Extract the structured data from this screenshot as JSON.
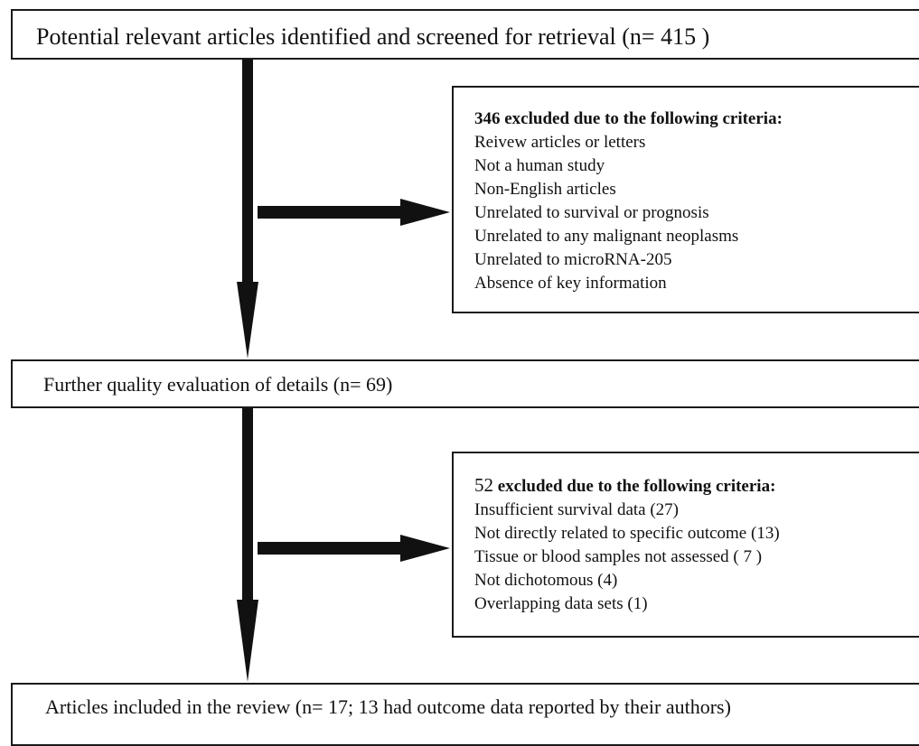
{
  "flow": {
    "identified": {
      "label": "Potential relevant articles identified and screened for retrieval (n= 415 )"
    },
    "exclusion_1": {
      "count": "346",
      "heading_rest": " excluded due to the following criteria:",
      "criteria": [
        "Reivew articles or letters",
        "Not a human study",
        "Non-English articles",
        "Unrelated to survival or prognosis",
        "Unrelated to any malignant neoplasms",
        "Unrelated to microRNA-205",
        "Absence of key information"
      ]
    },
    "evaluation": {
      "label": "Further quality evaluation of details (n= 69)"
    },
    "exclusion_2": {
      "count": "52",
      "heading_rest": " excluded due to the following criteria:",
      "criteria": [
        "Insufficient survival data (27)",
        "Not directly related to specific outcome (13)",
        "Tissue or blood samples not assessed ( 7 )",
        "Not dichotomous (4)",
        "Overlapping data sets (1)"
      ]
    },
    "included": {
      "label": "Articles included in the review (n= 17; 13 had outcome data reported by their authors)"
    }
  },
  "colors": {
    "arrow": "#111111",
    "border": "#1a1a1a",
    "background": "#ffffff"
  }
}
